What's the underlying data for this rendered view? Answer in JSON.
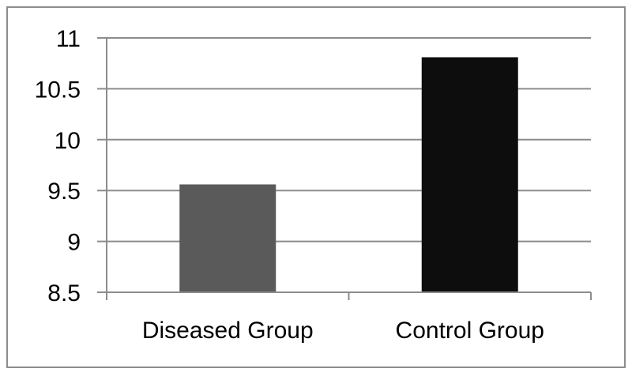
{
  "chart_data": {
    "type": "bar",
    "title": "",
    "xlabel": "",
    "ylabel": "",
    "categories": [
      "Diseased Group",
      "Control Group"
    ],
    "values": [
      9.56,
      10.81
    ],
    "colors": [
      "#5a5a5a",
      "#0d0d0d"
    ],
    "ylim": [
      8.5,
      11
    ],
    "yticks": [
      8.5,
      9,
      9.5,
      10,
      10.5,
      11
    ],
    "ytick_labels": [
      "8.5",
      "9",
      "9.5",
      "10",
      "10.5",
      "11"
    ],
    "grid": true,
    "legend": "none"
  }
}
